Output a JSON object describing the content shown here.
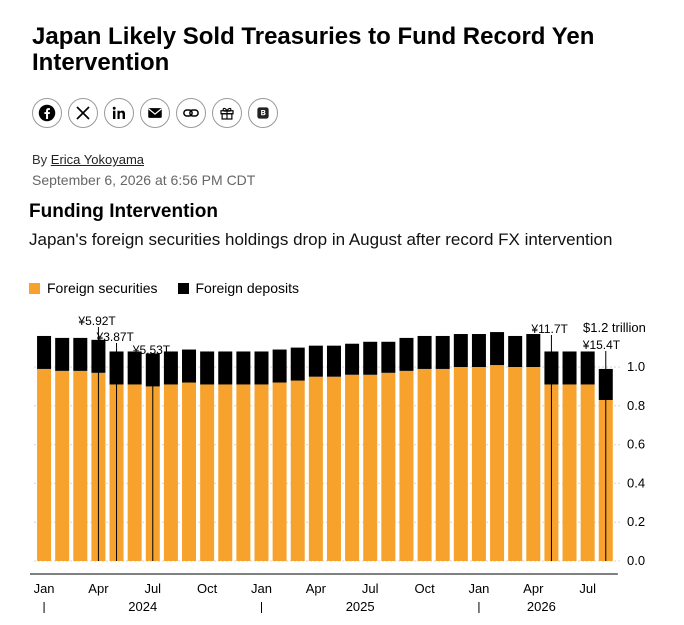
{
  "article": {
    "headline": "Japan Likely Sold Treasuries to Fund Record Yen Intervention",
    "byline_prefix": "By ",
    "author": "Erica Yokoyama",
    "date": "September 6, 2026 at 6:56 PM CDT"
  },
  "share_icons": [
    "facebook-icon",
    "x-icon",
    "linkedin-icon",
    "mail-icon",
    "link-icon",
    "gift-icon",
    "bloomberg-icon"
  ],
  "colors": {
    "securities": "#f7a22c",
    "deposits": "#000000"
  },
  "chart_data": {
    "type": "bar",
    "stacked": true,
    "title": "Funding Intervention",
    "subtitle": "Japan's foreign securities holdings drop in August after record FX intervention",
    "legend": [
      "Foreign securities",
      "Foreign deposits"
    ],
    "unit_label": "$1.2 trillion",
    "ylim": [
      0,
      1.2
    ],
    "y_ticks": [
      "0.0",
      "0.2",
      "0.4",
      "0.6",
      "0.8",
      "1.0"
    ],
    "months": [
      "2024-01",
      "2024-02",
      "2024-03",
      "2024-04",
      "2024-05",
      "2024-06",
      "2024-07",
      "2024-08",
      "2024-09",
      "2024-10",
      "2024-11",
      "2024-12",
      "2025-01",
      "2025-02",
      "2025-03",
      "2025-04",
      "2025-05",
      "2025-06",
      "2025-07",
      "2025-08",
      "2025-09",
      "2025-10",
      "2025-11",
      "2025-12",
      "2026-01",
      "2026-02",
      "2026-03",
      "2026-04",
      "2026-05",
      "2026-06",
      "2026-07",
      "2026-08"
    ],
    "x_tick_labels": [
      {
        "index": 0,
        "label": "Jan"
      },
      {
        "index": 3,
        "label": "Apr"
      },
      {
        "index": 6,
        "label": "Jul"
      },
      {
        "index": 9,
        "label": "Oct"
      },
      {
        "index": 12,
        "label": "Jan"
      },
      {
        "index": 15,
        "label": "Apr"
      },
      {
        "index": 18,
        "label": "Jul"
      },
      {
        "index": 21,
        "label": "Oct"
      },
      {
        "index": 24,
        "label": "Jan"
      },
      {
        "index": 27,
        "label": "Apr"
      },
      {
        "index": 30,
        "label": "Jul"
      }
    ],
    "year_labels": [
      {
        "start": 0,
        "end": 11,
        "label": "2024"
      },
      {
        "start": 12,
        "end": 23,
        "label": "2025"
      },
      {
        "start": 24,
        "end": 31,
        "label": "2026"
      }
    ],
    "series": [
      {
        "name": "Foreign securities",
        "values": [
          0.99,
          0.98,
          0.98,
          0.97,
          0.91,
          0.91,
          0.9,
          0.91,
          0.92,
          0.91,
          0.91,
          0.91,
          0.91,
          0.92,
          0.93,
          0.95,
          0.95,
          0.96,
          0.96,
          0.97,
          0.98,
          0.99,
          0.99,
          1.0,
          1.0,
          1.01,
          1.0,
          1.0,
          0.91,
          0.91,
          0.91,
          0.83
        ]
      },
      {
        "name": "Foreign deposits",
        "values": [
          0.17,
          0.17,
          0.17,
          0.17,
          0.17,
          0.17,
          0.17,
          0.17,
          0.17,
          0.17,
          0.17,
          0.17,
          0.17,
          0.17,
          0.17,
          0.16,
          0.16,
          0.16,
          0.17,
          0.16,
          0.17,
          0.17,
          0.17,
          0.17,
          0.17,
          0.17,
          0.16,
          0.17,
          0.17,
          0.17,
          0.17,
          0.16
        ]
      }
    ],
    "annotations": [
      {
        "index": 3,
        "label": "¥5.92T"
      },
      {
        "index": 4,
        "label": "¥3.87T"
      },
      {
        "index": 6,
        "label": "¥5.53T"
      },
      {
        "index": 28,
        "label": "¥11.7T"
      },
      {
        "index": 31,
        "label": "¥15.4T"
      }
    ]
  }
}
